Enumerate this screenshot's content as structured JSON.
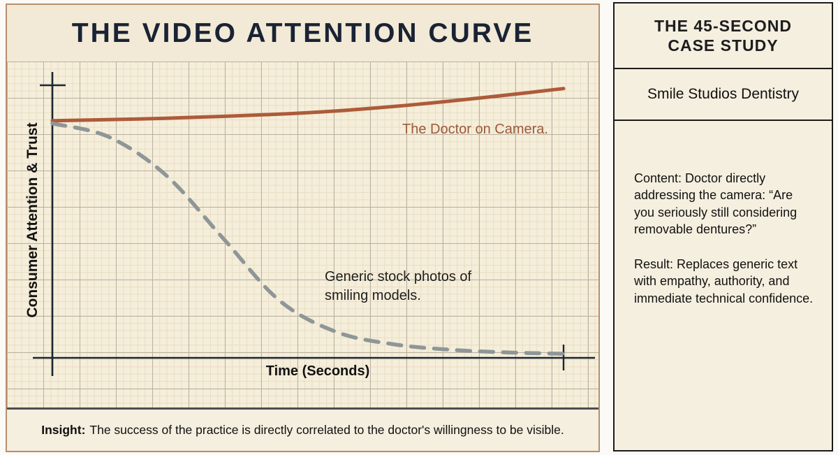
{
  "left_panel": {
    "title": "THE VIDEO ATTENTION CURVE",
    "insight_label": "Insight:",
    "insight_text": "The success of the practice is directly correlated to the doctor's willingness to be visible."
  },
  "chart_data": {
    "type": "line",
    "title": "THE VIDEO ATTENTION CURVE",
    "xlabel": "Time (Seconds)",
    "ylabel": "Consumer Attention & Trust",
    "xlim": [
      0,
      45
    ],
    "ylim": [
      0,
      100
    ],
    "grid": true,
    "legend_position": "inline-annotations",
    "x": [
      0,
      5,
      10,
      15,
      20,
      25,
      30,
      35,
      40,
      45
    ],
    "series": [
      {
        "name": "The Doctor on Camera.",
        "style": "solid",
        "color": "#ad5b3a",
        "label_color": "#9c5a3a",
        "values": [
          87,
          87.4,
          87.9,
          88.6,
          89.4,
          90.6,
          92.2,
          94.2,
          96.4,
          98.8
        ]
      },
      {
        "name": "Generic stock photos of smiling models.",
        "style": "dashed",
        "color": "#8f9697",
        "label_color": "#1e1e1e",
        "values": [
          86,
          81,
          67,
          44,
          21,
          9.5,
          5,
          3,
          2,
          1.5
        ]
      }
    ]
  },
  "sidebar": {
    "heading": "THE 45-SECOND CASE STUDY",
    "subheading": "Smile Studios Dentistry",
    "paragraphs": [
      "Content: Doctor directly addressing the camera: “Are you seriously still considering removable dentures?”",
      "Result: Replaces generic text with empathy, authority, and immediate technical confidence."
    ]
  },
  "colors": {
    "axis": "#1c2431",
    "panel_bg": "#f4edda",
    "left_border": "#b78f6e",
    "right_border": "#1b1b1b",
    "divider": "#4b4e4e"
  }
}
